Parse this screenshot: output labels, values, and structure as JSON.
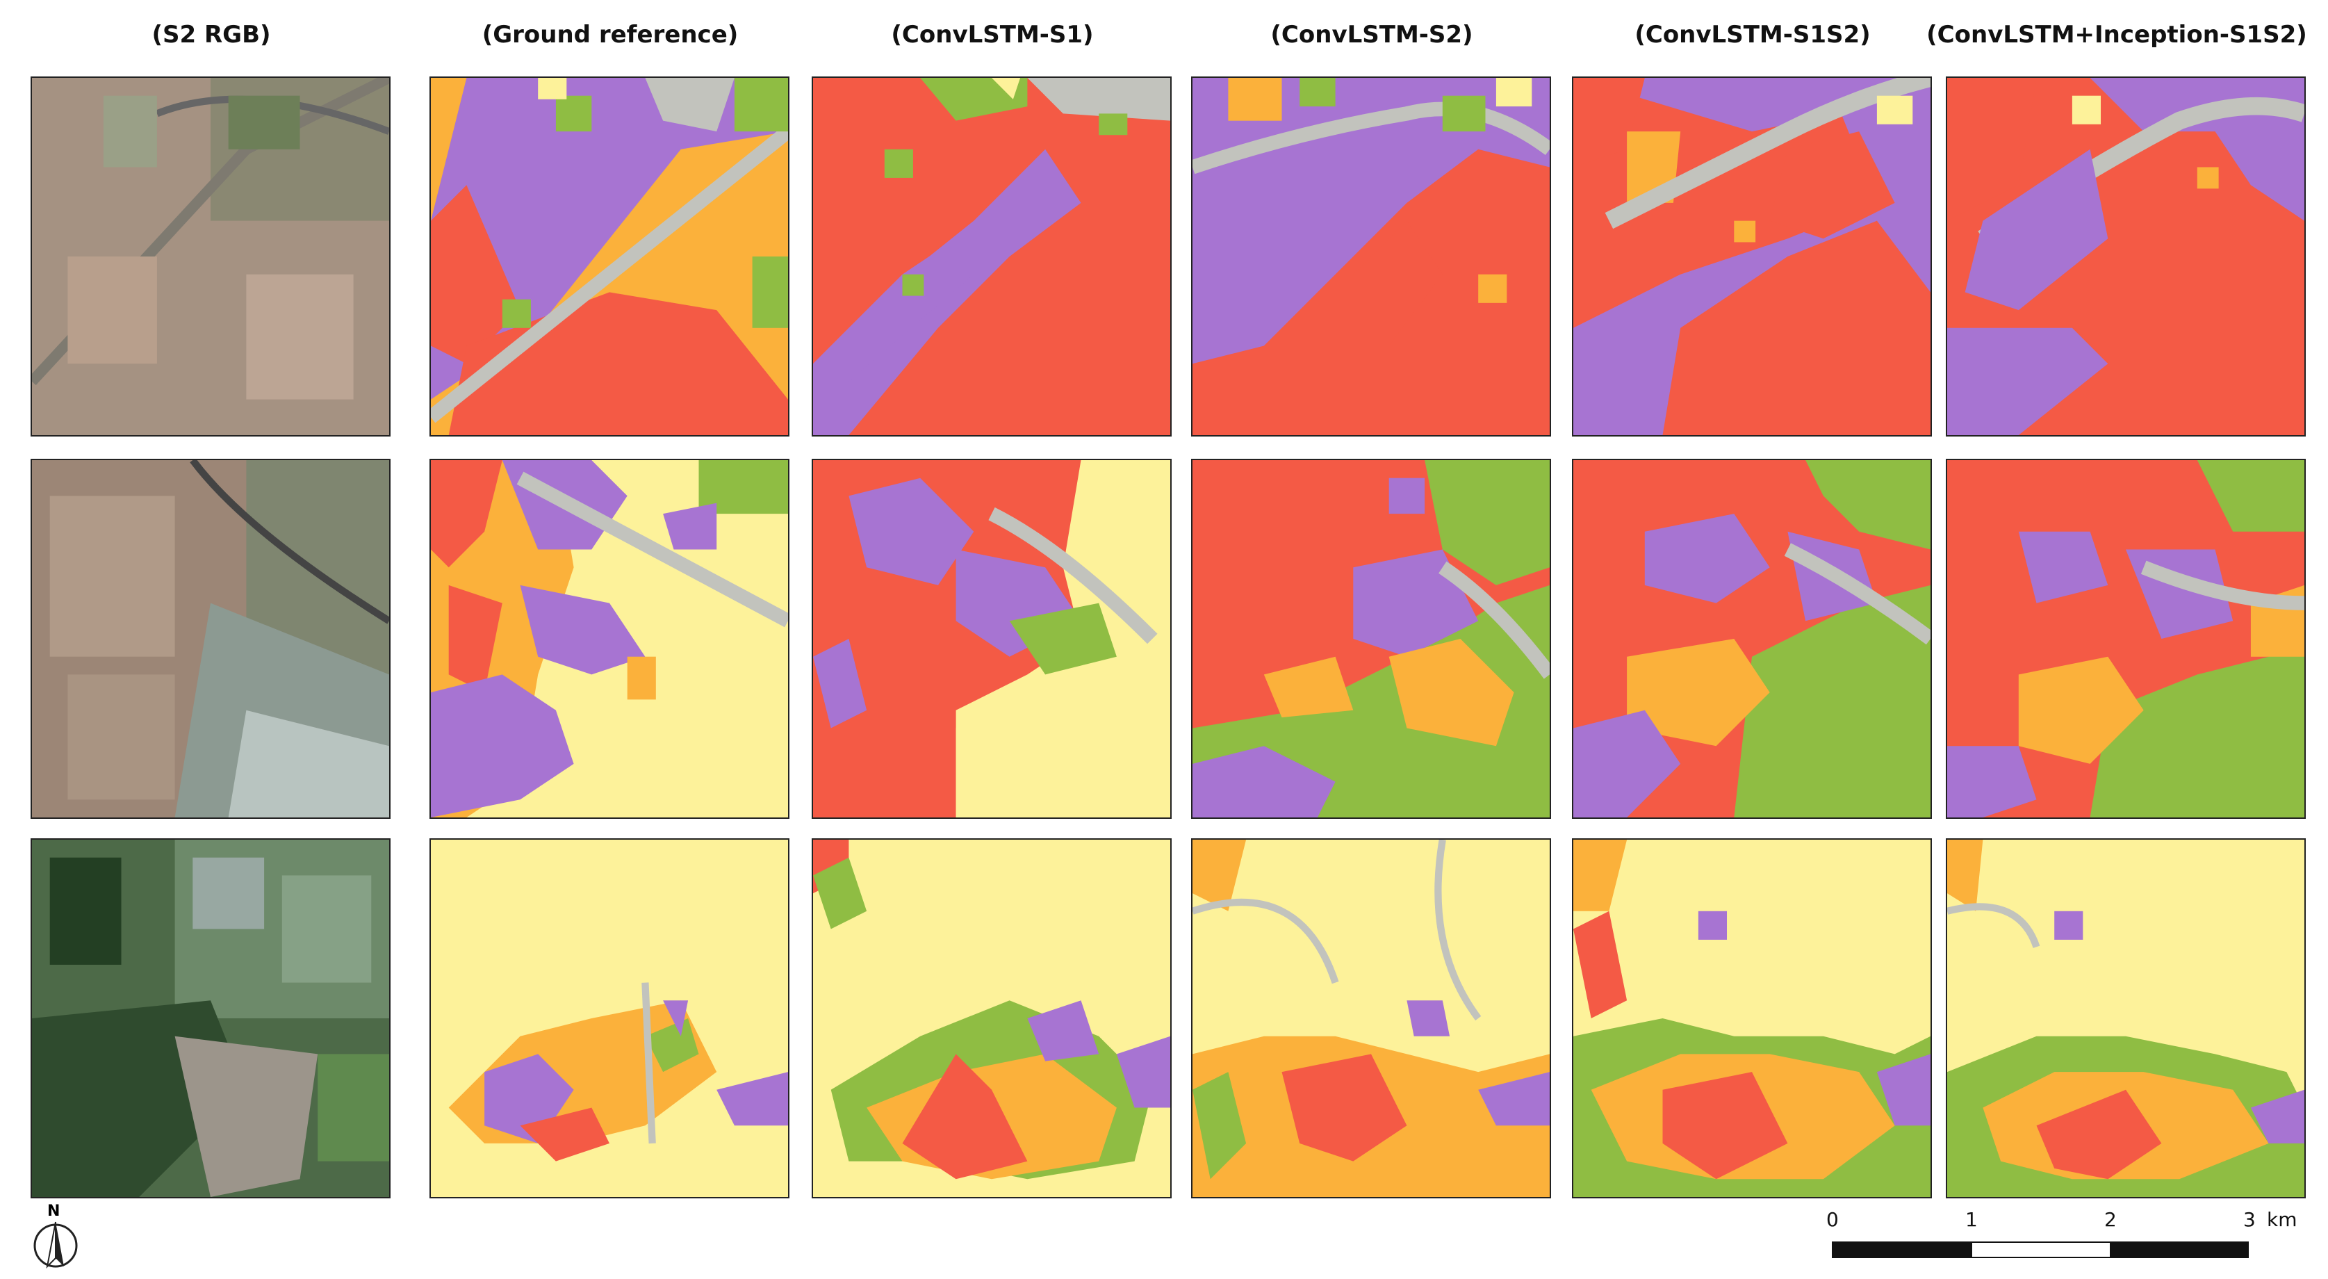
{
  "columns": [
    {
      "title": "(S2 RGB)"
    },
    {
      "title": "(Ground reference)"
    },
    {
      "title": "(ConvLSTM-S1)"
    },
    {
      "title": "(ConvLSTM-S2)"
    },
    {
      "title": "(ConvLSTM-S1S2)"
    },
    {
      "title": "(ConvLSTM+Inception-S1S2)"
    }
  ],
  "rows": 3,
  "class_colors": {
    "red": "#f45a45",
    "purple": "#a774d2",
    "orange": "#fbb13b",
    "green": "#8fbd43",
    "yellow": "#fdf29a",
    "gray": "#c2c3bd"
  },
  "north_arrow": {
    "label": "N"
  },
  "scale_bar": {
    "ticks": [
      "0",
      "1",
      "2",
      "3"
    ],
    "unit": "km"
  }
}
